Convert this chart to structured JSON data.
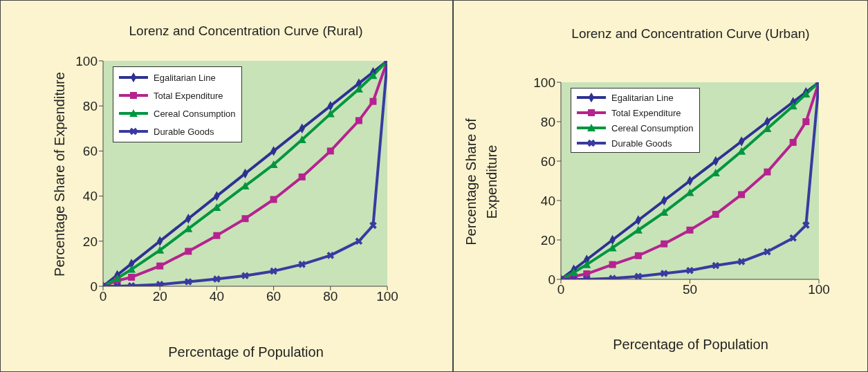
{
  "chart_data": [
    {
      "type": "line",
      "title": "Lorenz and Concentration Curve (Rural)",
      "xlabel": "Percentage of Population",
      "ylabel": "Percentage Share of Expenditure",
      "x": [
        0,
        5,
        10,
        20,
        30,
        40,
        50,
        60,
        70,
        80,
        90,
        95,
        100
      ],
      "xlim": [
        0,
        100
      ],
      "xticks": [
        0,
        20,
        40,
        60,
        80,
        100
      ],
      "ylim": [
        0,
        100
      ],
      "yticks": [
        0,
        20,
        40,
        60,
        80,
        100
      ],
      "grid": false,
      "legend": "top left",
      "line_style": "solid",
      "series": [
        {
          "name": "Egalitarian Line",
          "color": "#2e3192",
          "marker": "diamond",
          "values": [
            0,
            5,
            10,
            20,
            30,
            40,
            50,
            60,
            70,
            80,
            90,
            95,
            100
          ]
        },
        {
          "name": "Total Expenditure",
          "color": "#b5238f",
          "marker": "square",
          "values": [
            0,
            2.5,
            4,
            9,
            15.5,
            22.5,
            30,
            38.5,
            48.5,
            60,
            73.5,
            82,
            100
          ]
        },
        {
          "name": "Cereal Consumption",
          "color": "#00963f",
          "marker": "triangle",
          "values": [
            0,
            3.5,
            7.5,
            16,
            25.5,
            35,
            44.5,
            54,
            65,
            76.5,
            87.5,
            93.5,
            100
          ]
        },
        {
          "name": "Durable Goods",
          "color": "#3a3aa0",
          "marker": "cross",
          "values": [
            0,
            0,
            0.2,
            0.8,
            2,
            3.2,
            4.7,
            6.7,
            9.7,
            13.7,
            20,
            27,
            100
          ]
        }
      ]
    },
    {
      "type": "line",
      "title": "Lorenz and Concentration Curve (Urban)",
      "xlabel": "Percentage of Population",
      "ylabel": "Percentage Share of Expenditure",
      "x": [
        0,
        5,
        10,
        20,
        30,
        40,
        50,
        60,
        70,
        80,
        90,
        95,
        100
      ],
      "xlim": [
        0,
        100
      ],
      "xticks": [
        0,
        50,
        100
      ],
      "ylim": [
        0,
        100
      ],
      "yticks": [
        0,
        20,
        40,
        60,
        80,
        100
      ],
      "grid": false,
      "legend": "top left",
      "line_style": "solid",
      "series": [
        {
          "name": "Egalitarian Line",
          "color": "#2e3192",
          "marker": "diamond",
          "values": [
            0,
            5,
            10,
            20,
            30,
            40,
            50,
            60,
            70,
            80,
            90,
            95,
            100
          ]
        },
        {
          "name": "Total Expenditure",
          "color": "#b5238f",
          "marker": "square",
          "values": [
            0,
            1.5,
            2.8,
            7.5,
            12,
            18,
            25,
            33,
            43,
            54.5,
            69.5,
            80,
            100
          ]
        },
        {
          "name": "Cereal Consumption",
          "color": "#00963f",
          "marker": "triangle",
          "values": [
            0,
            3.5,
            7.5,
            16,
            25,
            34,
            44,
            54,
            65,
            76.5,
            88,
            94,
            100
          ]
        },
        {
          "name": "Durable Goods",
          "color": "#3a3aa0",
          "marker": "cross",
          "values": [
            0,
            0,
            0,
            0.5,
            1.5,
            3,
            4.5,
            7,
            9,
            14,
            21,
            27.5,
            100
          ]
        }
      ]
    }
  ]
}
